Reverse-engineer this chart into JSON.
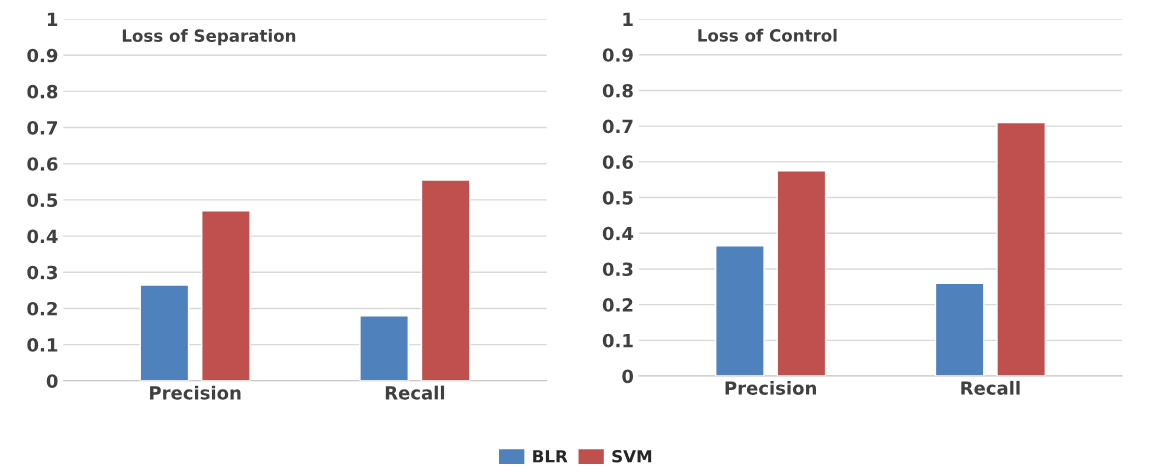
{
  "chart_data": [
    {
      "type": "bar",
      "title": "Loss of Separation",
      "categories": [
        "Precision",
        "Recall"
      ],
      "series": [
        {
          "color": "#4f81bd",
          "values": [
            0.265,
            0.18
          ]
        },
        {
          "color": "#c0504d",
          "values": [
            0.47,
            0.555
          ]
        }
      ],
      "ylim": [
        0,
        1
      ],
      "yticks": [
        0,
        0.1,
        0.2,
        0.3,
        0.4,
        0.5,
        0.6,
        0.7,
        0.8,
        0.9,
        1
      ],
      "grid": "y"
    },
    {
      "type": "bar",
      "title": "Loss of Control",
      "categories": [
        "Precision",
        "Recall"
      ],
      "series": [
        {
          "name": "BLR",
          "color": "#4f81bd",
          "values": [
            0.365,
            0.26
          ]
        },
        {
          "name": "SVM",
          "color": "#c0504d",
          "values": [
            0.575,
            0.71
          ]
        }
      ],
      "ylim": [
        0,
        1
      ],
      "yticks": [
        0,
        0.1,
        0.2,
        0.3,
        0.4,
        0.5,
        0.6,
        0.7,
        0.8,
        0.9,
        1
      ],
      "grid": "y",
      "legend": "bottom"
    }
  ]
}
